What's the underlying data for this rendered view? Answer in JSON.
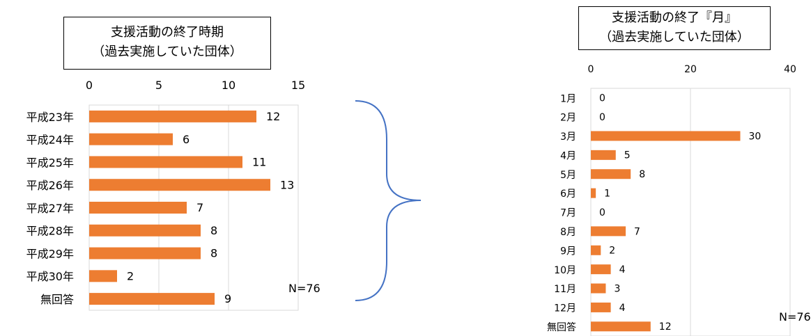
{
  "chart_data": [
    {
      "type": "bar",
      "orientation": "horizontal",
      "title": "支援活動の終了時期",
      "subtitle": "（過去実施していた団体）",
      "categories": [
        "平成23年",
        "平成24年",
        "平成25年",
        "平成26年",
        "平成27年",
        "平成28年",
        "平成29年",
        "平成30年",
        "無回答"
      ],
      "values": [
        12,
        6,
        11,
        13,
        7,
        8,
        8,
        2,
        9
      ],
      "xlim": [
        0,
        15
      ],
      "xticks": [
        0,
        5,
        10,
        15
      ],
      "axis_position": "top",
      "grid": true,
      "bar_color": "#ED7D31",
      "note": "N=76"
    },
    {
      "type": "bar",
      "orientation": "horizontal",
      "title": "支援活動の終了『月』",
      "subtitle": "（過去実施していた団体）",
      "categories": [
        "1月",
        "2月",
        "3月",
        "4月",
        "5月",
        "6月",
        "7月",
        "8月",
        "9月",
        "10月",
        "11月",
        "12月",
        "無回答"
      ],
      "values": [
        0,
        0,
        30,
        5,
        8,
        1,
        0,
        7,
        2,
        4,
        3,
        4,
        12
      ],
      "xlim": [
        0,
        40
      ],
      "xticks": [
        0,
        20,
        40
      ],
      "axis_position": "top",
      "grid": true,
      "bar_color": "#ED7D31",
      "note": "N=76"
    }
  ]
}
